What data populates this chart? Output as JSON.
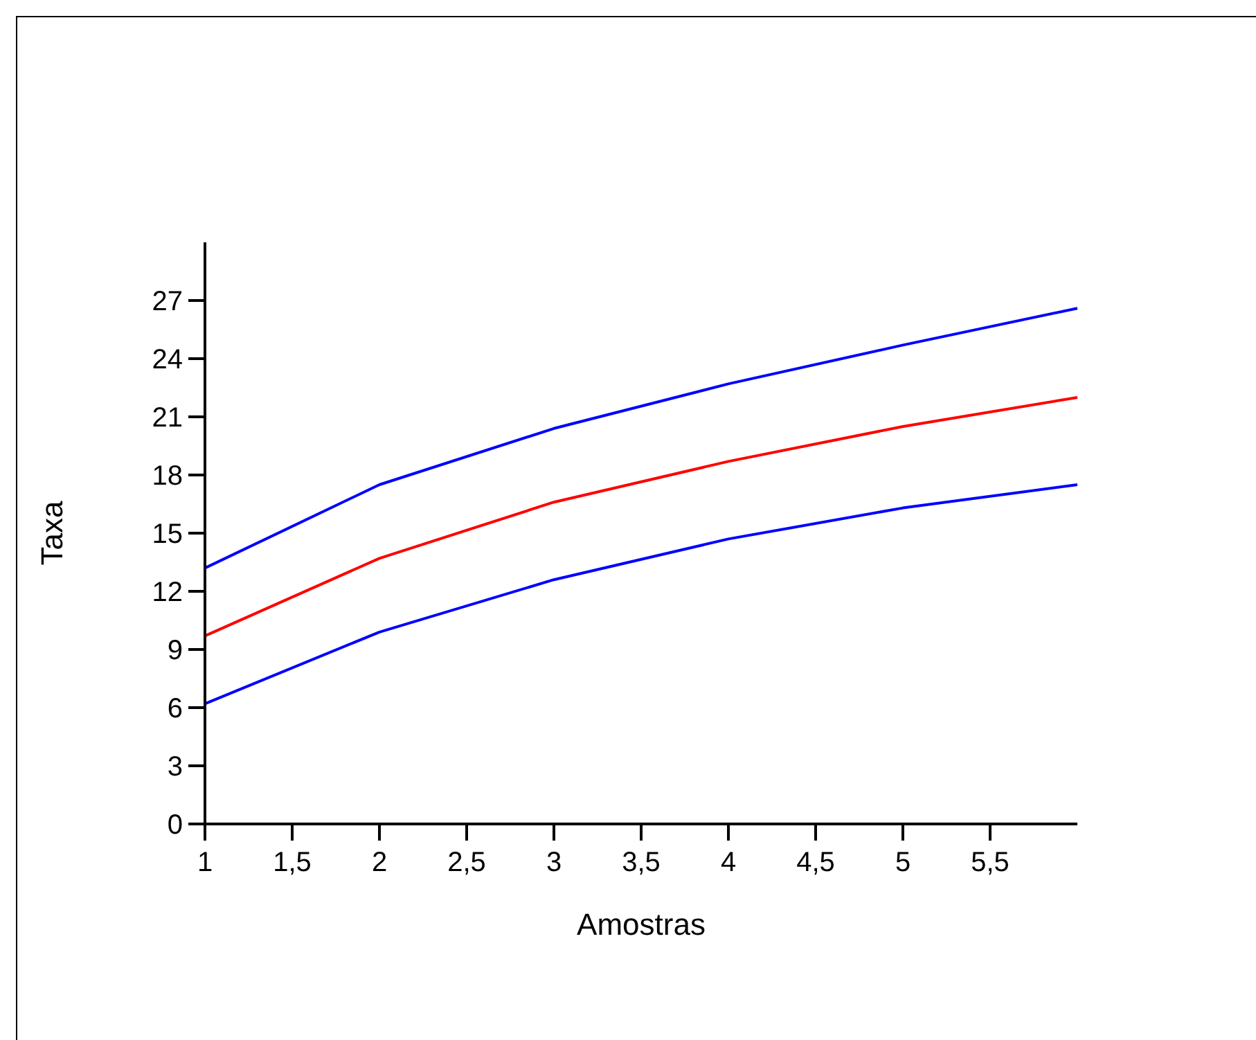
{
  "chart_data": {
    "type": "line",
    "xlabel": "Amostras",
    "ylabel": "Taxa",
    "x": [
      1,
      2,
      3,
      4,
      5,
      6
    ],
    "series": [
      {
        "color": "#0000ff",
        "values": [
          13.2,
          17.5,
          20.4,
          22.7,
          24.7,
          26.6
        ]
      },
      {
        "color": "#ff0000",
        "values": [
          9.7,
          13.7,
          16.6,
          18.7,
          20.5,
          22.0
        ]
      },
      {
        "color": "#0000ff",
        "values": [
          6.2,
          9.9,
          12.6,
          14.7,
          16.3,
          17.5
        ]
      }
    ],
    "xlim": [
      1,
      6
    ],
    "xticks": [
      1,
      {
        "value": 1.5,
        "label": "1,5"
      },
      2,
      {
        "value": 2.5,
        "label": "2,5"
      },
      3,
      {
        "value": 3.5,
        "label": "3,5"
      },
      4,
      {
        "value": 4.5,
        "label": "4,5"
      },
      5,
      {
        "value": 5.5,
        "label": "5,5"
      }
    ],
    "ylim": [
      0,
      30
    ],
    "yticks": [
      0,
      3,
      6,
      9,
      12,
      15,
      18,
      21,
      24,
      27
    ],
    "marker": "none",
    "line_style": "solid"
  }
}
